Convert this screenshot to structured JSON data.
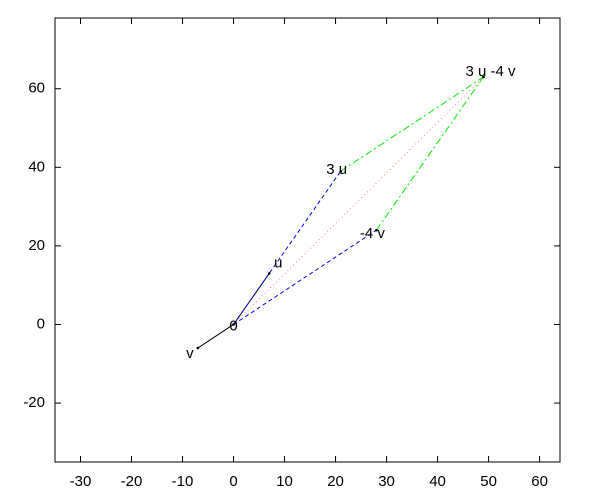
{
  "chart_data": {
    "type": "vector",
    "xlim": [
      -35,
      64
    ],
    "ylim": [
      -35,
      78
    ],
    "xticks": [
      -30,
      -20,
      -10,
      0,
      10,
      20,
      30,
      40,
      50,
      60
    ],
    "yticks": [
      -20,
      0,
      20,
      40,
      60
    ],
    "series": [
      {
        "color": "#000000",
        "dash": "solid",
        "x": [
          0,
          7
        ],
        "y": [
          0,
          13
        ]
      },
      {
        "color": "#000000",
        "dash": "solid",
        "x": [
          0,
          -7
        ],
        "y": [
          0,
          -6
        ]
      },
      {
        "color": "#0000ff",
        "dash": "dashed",
        "x": [
          0,
          21
        ],
        "y": [
          0,
          39
        ]
      },
      {
        "color": "#0000ff",
        "dash": "dashed",
        "x": [
          0,
          28
        ],
        "y": [
          0,
          24
        ]
      },
      {
        "color": "#00ee00",
        "dash": "dashdot",
        "x": [
          21,
          49
        ],
        "y": [
          39,
          63
        ]
      },
      {
        "color": "#00ee00",
        "dash": "dashdot",
        "x": [
          28,
          49
        ],
        "y": [
          24,
          63
        ]
      },
      {
        "color": "#ff8080",
        "dash": "dotted",
        "x": [
          0,
          49
        ],
        "y": [
          0,
          63
        ]
      }
    ],
    "points": [
      {
        "label": "0",
        "x": 0,
        "y": 0
      },
      {
        "label": "u",
        "x": 7,
        "y": 13
      },
      {
        "label": "v",
        "x": -7,
        "y": -6
      },
      {
        "label": "3 u",
        "x": 21,
        "y": 39
      },
      {
        "label": "-4 v",
        "x": 28,
        "y": 24
      },
      {
        "label": "3 u -4 v",
        "x": 49,
        "y": 63
      }
    ]
  }
}
